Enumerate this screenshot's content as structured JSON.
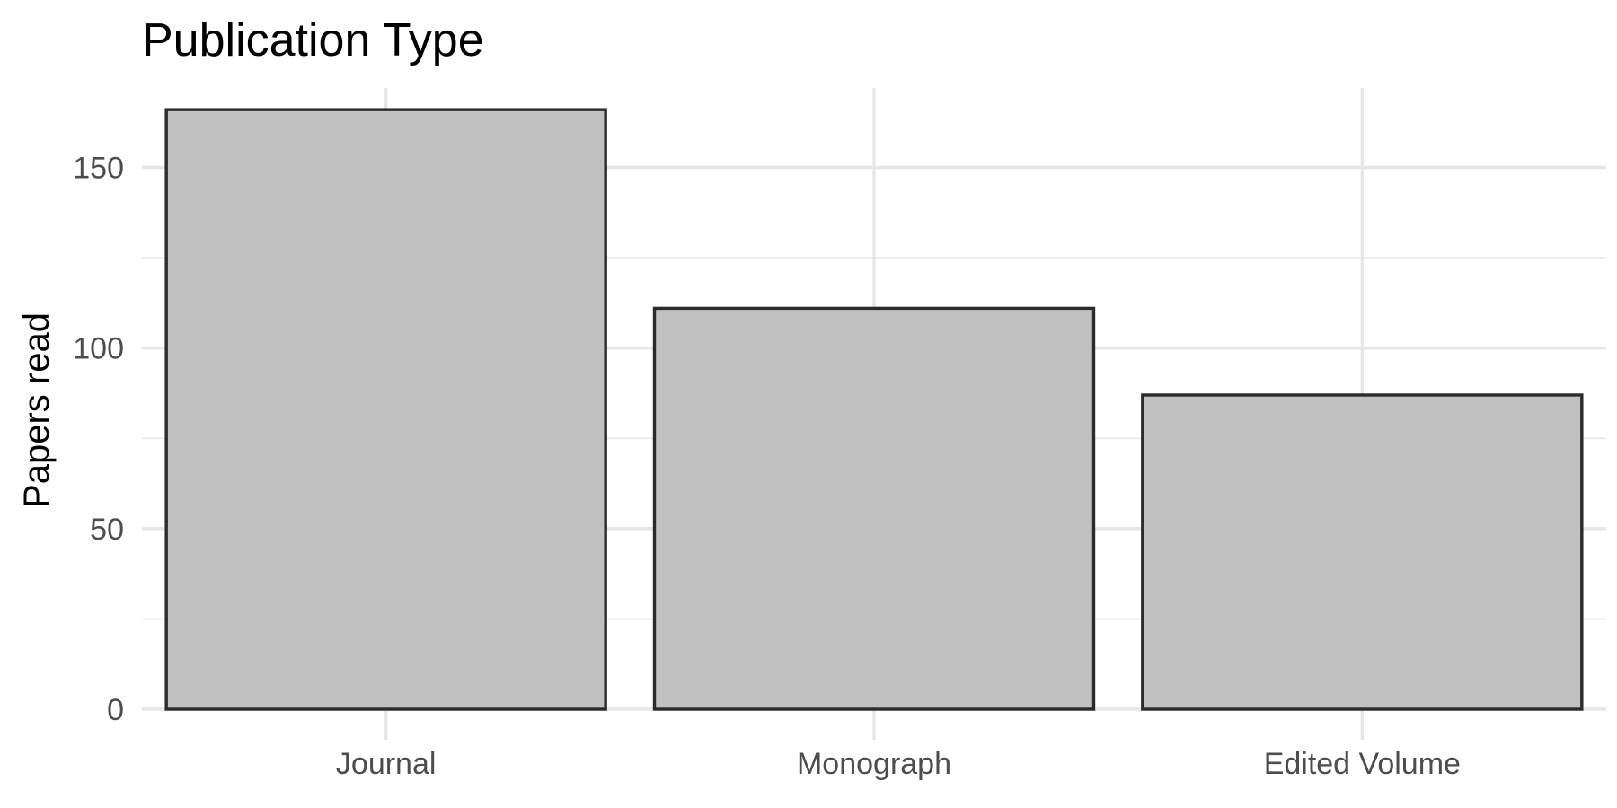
{
  "chart_data": {
    "type": "bar",
    "title": "Publication Type",
    "xlabel": "",
    "ylabel": "Papers read",
    "categories": [
      "Journal",
      "Monograph",
      "Edited Volume"
    ],
    "values": [
      166,
      111,
      87
    ],
    "ylim": [
      0,
      172
    ],
    "yticks": [
      0,
      50,
      100,
      150
    ],
    "yticks_minor": [
      25,
      75,
      125
    ],
    "grid": true,
    "legend": "none",
    "colors": {
      "bar_fill": "#c0c0c0",
      "bar_outline": "#2b2b2b",
      "grid": "#e6e6e6",
      "background": "#ffffff"
    }
  }
}
